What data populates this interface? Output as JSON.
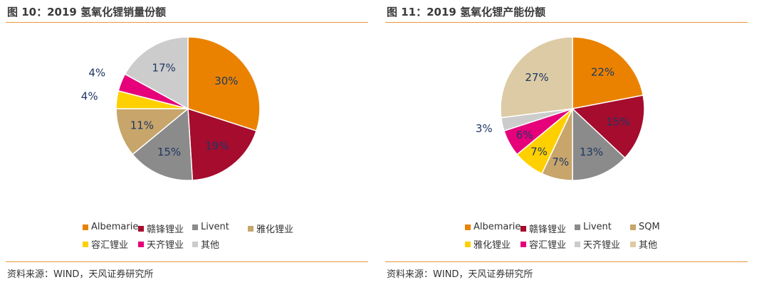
{
  "charts": [
    {
      "title": "图 10：2019 氢氧化锂销量份额",
      "source": "资料来源：WIND，天风证券研究所"
    },
    {
      "title": "图 11：2019 氢氧化锂产能份额",
      "source": "资料来源：WIND，天风证券研究所"
    }
  ],
  "chart_data": [
    {
      "type": "pie",
      "title": "2019 氢氧化锂销量份额",
      "unit": "%",
      "slices": [
        {
          "label": "Albemarie",
          "value": 30,
          "display": "30%",
          "color": "#ea8200"
        },
        {
          "label": "赣锋锂业",
          "value": 19,
          "display": "19%",
          "color": "#a50c2e"
        },
        {
          "label": "Livent",
          "value": 15,
          "display": "15%",
          "color": "#8b8b8b"
        },
        {
          "label": "雅化锂业",
          "value": 11,
          "display": "11%",
          "color": "#c7a56b"
        },
        {
          "label": "容汇锂业",
          "value": 4,
          "display": "4%",
          "color": "#ffd000"
        },
        {
          "label": "天齐锂业",
          "value": 4,
          "display": "4%",
          "color": "#e6007a"
        },
        {
          "label": "其他",
          "value": 17,
          "display": "17%",
          "color": "#cccccc"
        }
      ],
      "legend_rows": [
        [
          "Albemarie",
          "赣锋锂业",
          "Livent",
          "雅化锂业"
        ],
        [
          "容汇锂业",
          "天齐锂业",
          "其他"
        ]
      ],
      "legend_position": "bottom"
    },
    {
      "type": "pie",
      "title": "2019 氢氧化锂产能份额",
      "unit": "%",
      "slices": [
        {
          "label": "Albemarie",
          "value": 22,
          "display": "22%",
          "color": "#ea8200"
        },
        {
          "label": "赣锋锂业",
          "value": 15,
          "display": "15%",
          "color": "#a50c2e"
        },
        {
          "label": "Livent",
          "value": 13,
          "display": "13%",
          "color": "#8b8b8b"
        },
        {
          "label": "SQM",
          "value": 7,
          "display": "7%",
          "color": "#c7a56b"
        },
        {
          "label": "雅化锂业",
          "value": 7,
          "display": "7%",
          "color": "#ffd000"
        },
        {
          "label": "容汇锂业",
          "value": 6,
          "display": "6%",
          "color": "#e6007a"
        },
        {
          "label": "天齐锂业",
          "value": 3,
          "display": "3%",
          "color": "#cccccc"
        },
        {
          "label": "其他",
          "value": 27,
          "display": "27%",
          "color": "#dccba4"
        }
      ],
      "legend_rows": [
        [
          "Albemarie",
          "赣锋锂业",
          "Livent",
          "SQM"
        ],
        [
          "雅化锂业",
          "容汇锂业",
          "天齐锂业",
          "其他"
        ]
      ],
      "legend_position": "bottom"
    }
  ]
}
